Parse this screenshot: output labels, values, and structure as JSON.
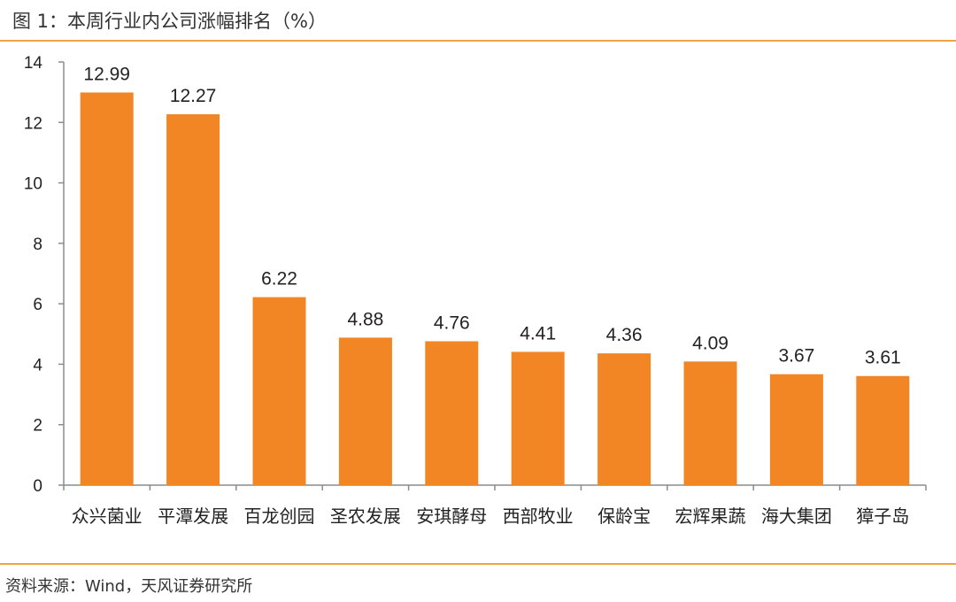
{
  "figure": {
    "title": "图 1：本周行业内公司涨幅排名（%）",
    "source": "资料来源：Wind，天风证券研究所"
  },
  "colors": {
    "bar": "#f28524",
    "rule": "#f0a448",
    "axis": "#8c8c8c"
  },
  "chart_data": {
    "type": "bar",
    "title": "本周行业内公司涨幅排名（%）",
    "xlabel": "",
    "ylabel": "",
    "ylim": [
      0,
      14
    ],
    "yticks": [
      0,
      2,
      4,
      6,
      8,
      10,
      12,
      14
    ],
    "categories": [
      "众兴菌业",
      "平潭发展",
      "百龙创园",
      "圣农发展",
      "安琪酵母",
      "西部牧业",
      "保龄宝",
      "宏辉果蔬",
      "海大集团",
      "獐子岛"
    ],
    "values": [
      12.99,
      12.27,
      6.22,
      4.88,
      4.76,
      4.41,
      4.36,
      4.09,
      3.67,
      3.61
    ],
    "value_labels": [
      "12.99",
      "12.27",
      "6.22",
      "4.88",
      "4.76",
      "4.41",
      "4.36",
      "4.09",
      "3.67",
      "3.61"
    ],
    "grid": false,
    "legend": "none"
  }
}
